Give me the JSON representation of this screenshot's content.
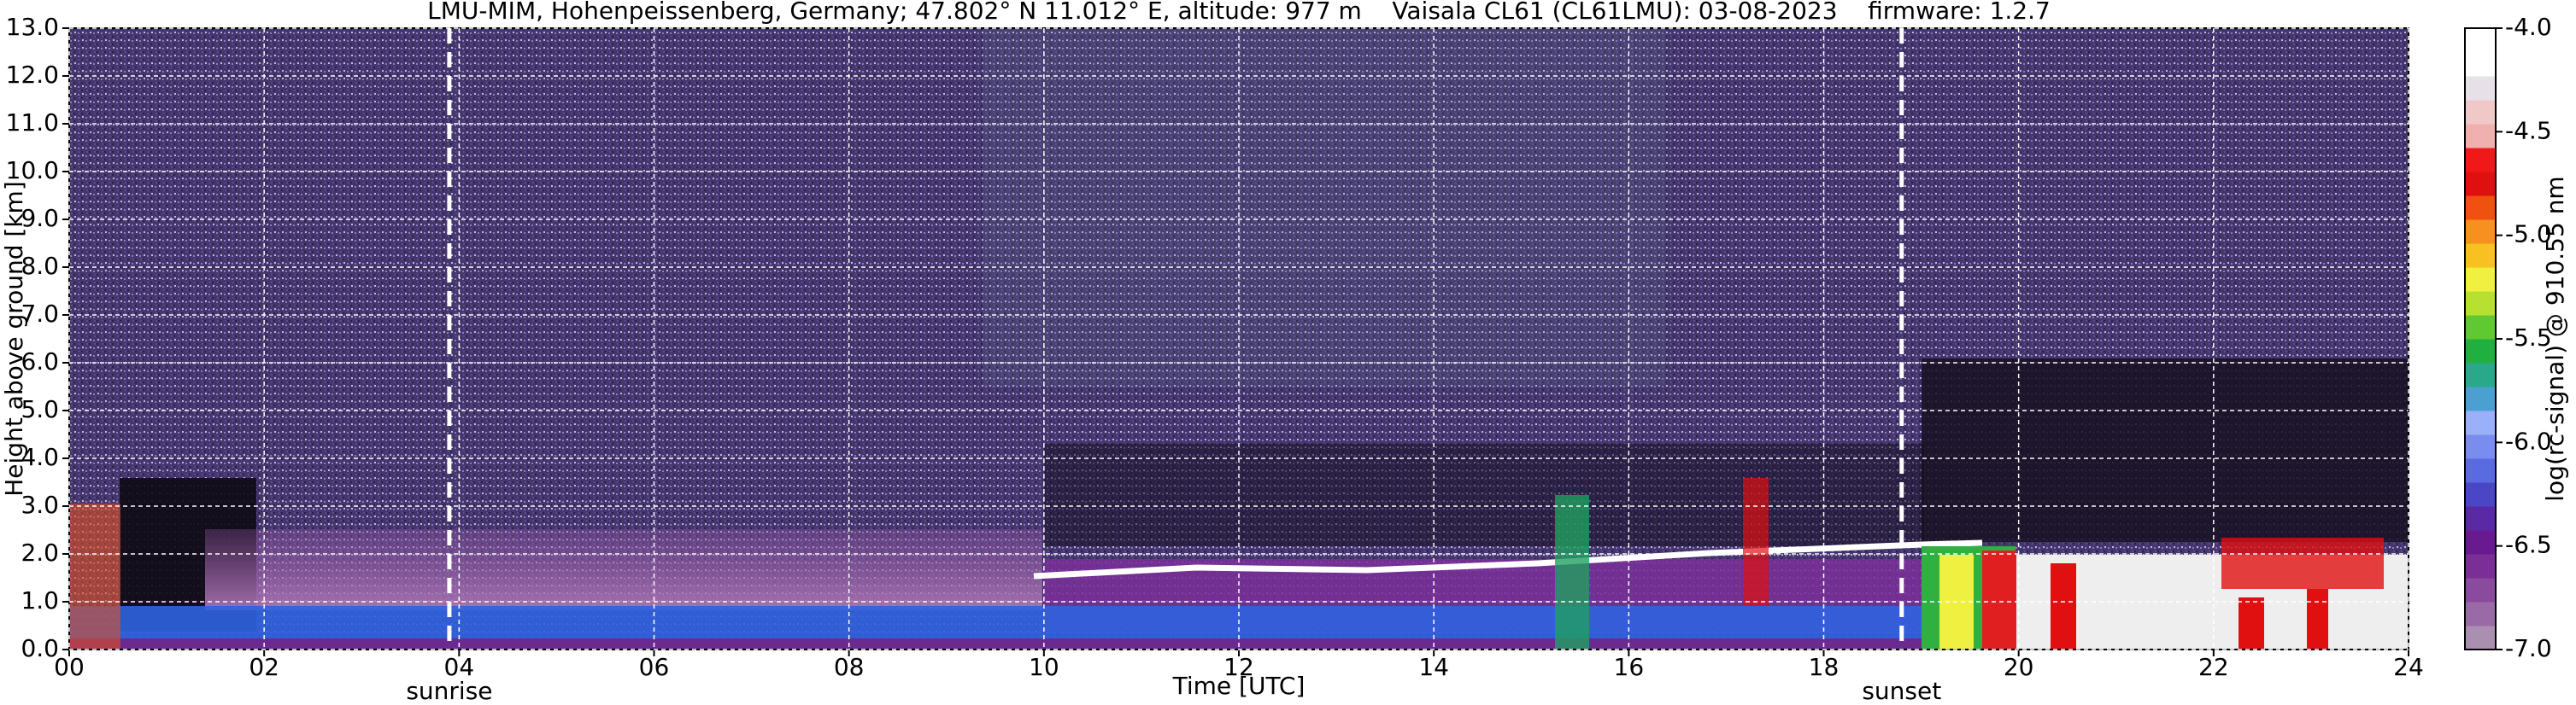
{
  "chart_data": {
    "type": "heatmap",
    "title": "LMU-MIM, Hohenpeissenberg, Germany; 47.802° N 11.012° E, altitude: 977 m    Vaisala CL61 (CL61LMU): 03-08-2023    firmware: 1.2.7",
    "x_label": "Time [UTC]",
    "y_label": "Height above ground [km]",
    "xlim": [
      0,
      24
    ],
    "xticks": [
      {
        "value": 0,
        "label": "00"
      },
      {
        "value": 2,
        "label": "02"
      },
      {
        "value": 4,
        "label": "04"
      },
      {
        "value": 6,
        "label": "06"
      },
      {
        "value": 8,
        "label": "08"
      },
      10,
      12,
      14,
      16,
      18,
      20,
      22,
      24
    ],
    "ylim": [
      0,
      13
    ],
    "yticks": [
      {
        "value": 0,
        "label": "0."
      },
      {
        "value": 1,
        "label": "1."
      },
      {
        "value": 2,
        "label": "2."
      },
      {
        "value": 3,
        "label": "3."
      },
      {
        "value": 4,
        "label": "4."
      },
      {
        "value": 5,
        "label": "5."
      },
      {
        "value": 6,
        "label": "6."
      },
      {
        "value": 7,
        "label": "7."
      },
      {
        "value": 8,
        "label": "8."
      },
      {
        "value": 9,
        "label": "9."
      },
      {
        "value": 10,
        "label": "10."
      },
      {
        "value": 11,
        "label": "11."
      },
      {
        "value": 12,
        "label": "12."
      },
      {
        "value": 13,
        "label": "13."
      }
    ],
    "grid": true,
    "colorbar": {
      "label": "log(rc-signal) @ 910.55 nm",
      "lim": [
        -7.0,
        -4.0
      ],
      "ticks": [
        {
          "value": -7.0,
          "label": "-7.0"
        },
        -6.5,
        {
          "value": -6.0,
          "label": "-6.0"
        },
        -5.5,
        {
          "value": -5.0,
          "label": "-5.0"
        },
        -4.5,
        {
          "value": -4.0,
          "label": "-4.0"
        }
      ],
      "colors": [
        "#a98fb0",
        "#9a6aa6",
        "#8a4b9e",
        "#7a2e96",
        "#6a1a90",
        "#5a2aa6",
        "#4b46c6",
        "#5a6ae0",
        "#7a8cf0",
        "#9ab0f8",
        "#4aa0d0",
        "#2aa88a",
        "#20b040",
        "#60c830",
        "#b8e030",
        "#f0f040",
        "#f8c020",
        "#f89020",
        "#f05010",
        "#e01010",
        "#f01818",
        "#f0b0b0",
        "#f0c8c8",
        "#e8e0e8",
        "#ffffff",
        "#ffffff"
      ]
    },
    "annotations": [
      {
        "x": 3.9,
        "text": "sunrise"
      },
      {
        "x": 18.8,
        "text": "sunset"
      }
    ]
  }
}
